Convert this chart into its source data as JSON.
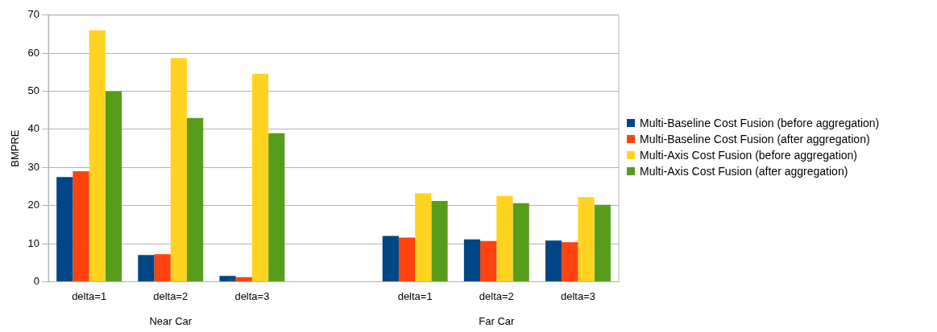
{
  "chart_data": {
    "type": "bar",
    "ylabel": "BMPRE",
    "categories": [
      "delta=1",
      "delta=2",
      "delta=3",
      null,
      "delta=1",
      "delta=2",
      "delta=3"
    ],
    "series": [
      {
        "name": "Multi-Baseline Cost Fusion (before aggregation)",
        "color": "#004586",
        "values": [
          27.5,
          7,
          1.5,
          null,
          12,
          11.1,
          10.8
        ]
      },
      {
        "name": "Multi-Baseline Cost Fusion (after aggregation)",
        "color": "#ff420e",
        "values": [
          29,
          7.2,
          1.2,
          null,
          11.6,
          10.7,
          10.4
        ]
      },
      {
        "name": "Multi-Axis Cost Fusion (before aggregation)",
        "color": "#ffd320",
        "values": [
          66,
          58.7,
          54.6,
          null,
          23.2,
          22.5,
          22.2
        ]
      },
      {
        "name": "Multi-Axis Cost Fusion (after aggregation)",
        "color": "#579d1c",
        "values": [
          50,
          43,
          39,
          null,
          21.2,
          20.6,
          20.2
        ]
      }
    ],
    "annotations": [
      "Near Car",
      "Far Car"
    ],
    "ylim": [
      0,
      70
    ],
    "yticks": [
      0,
      10,
      20,
      30,
      40,
      50,
      60,
      70
    ],
    "grid": "y",
    "legend": "right"
  }
}
